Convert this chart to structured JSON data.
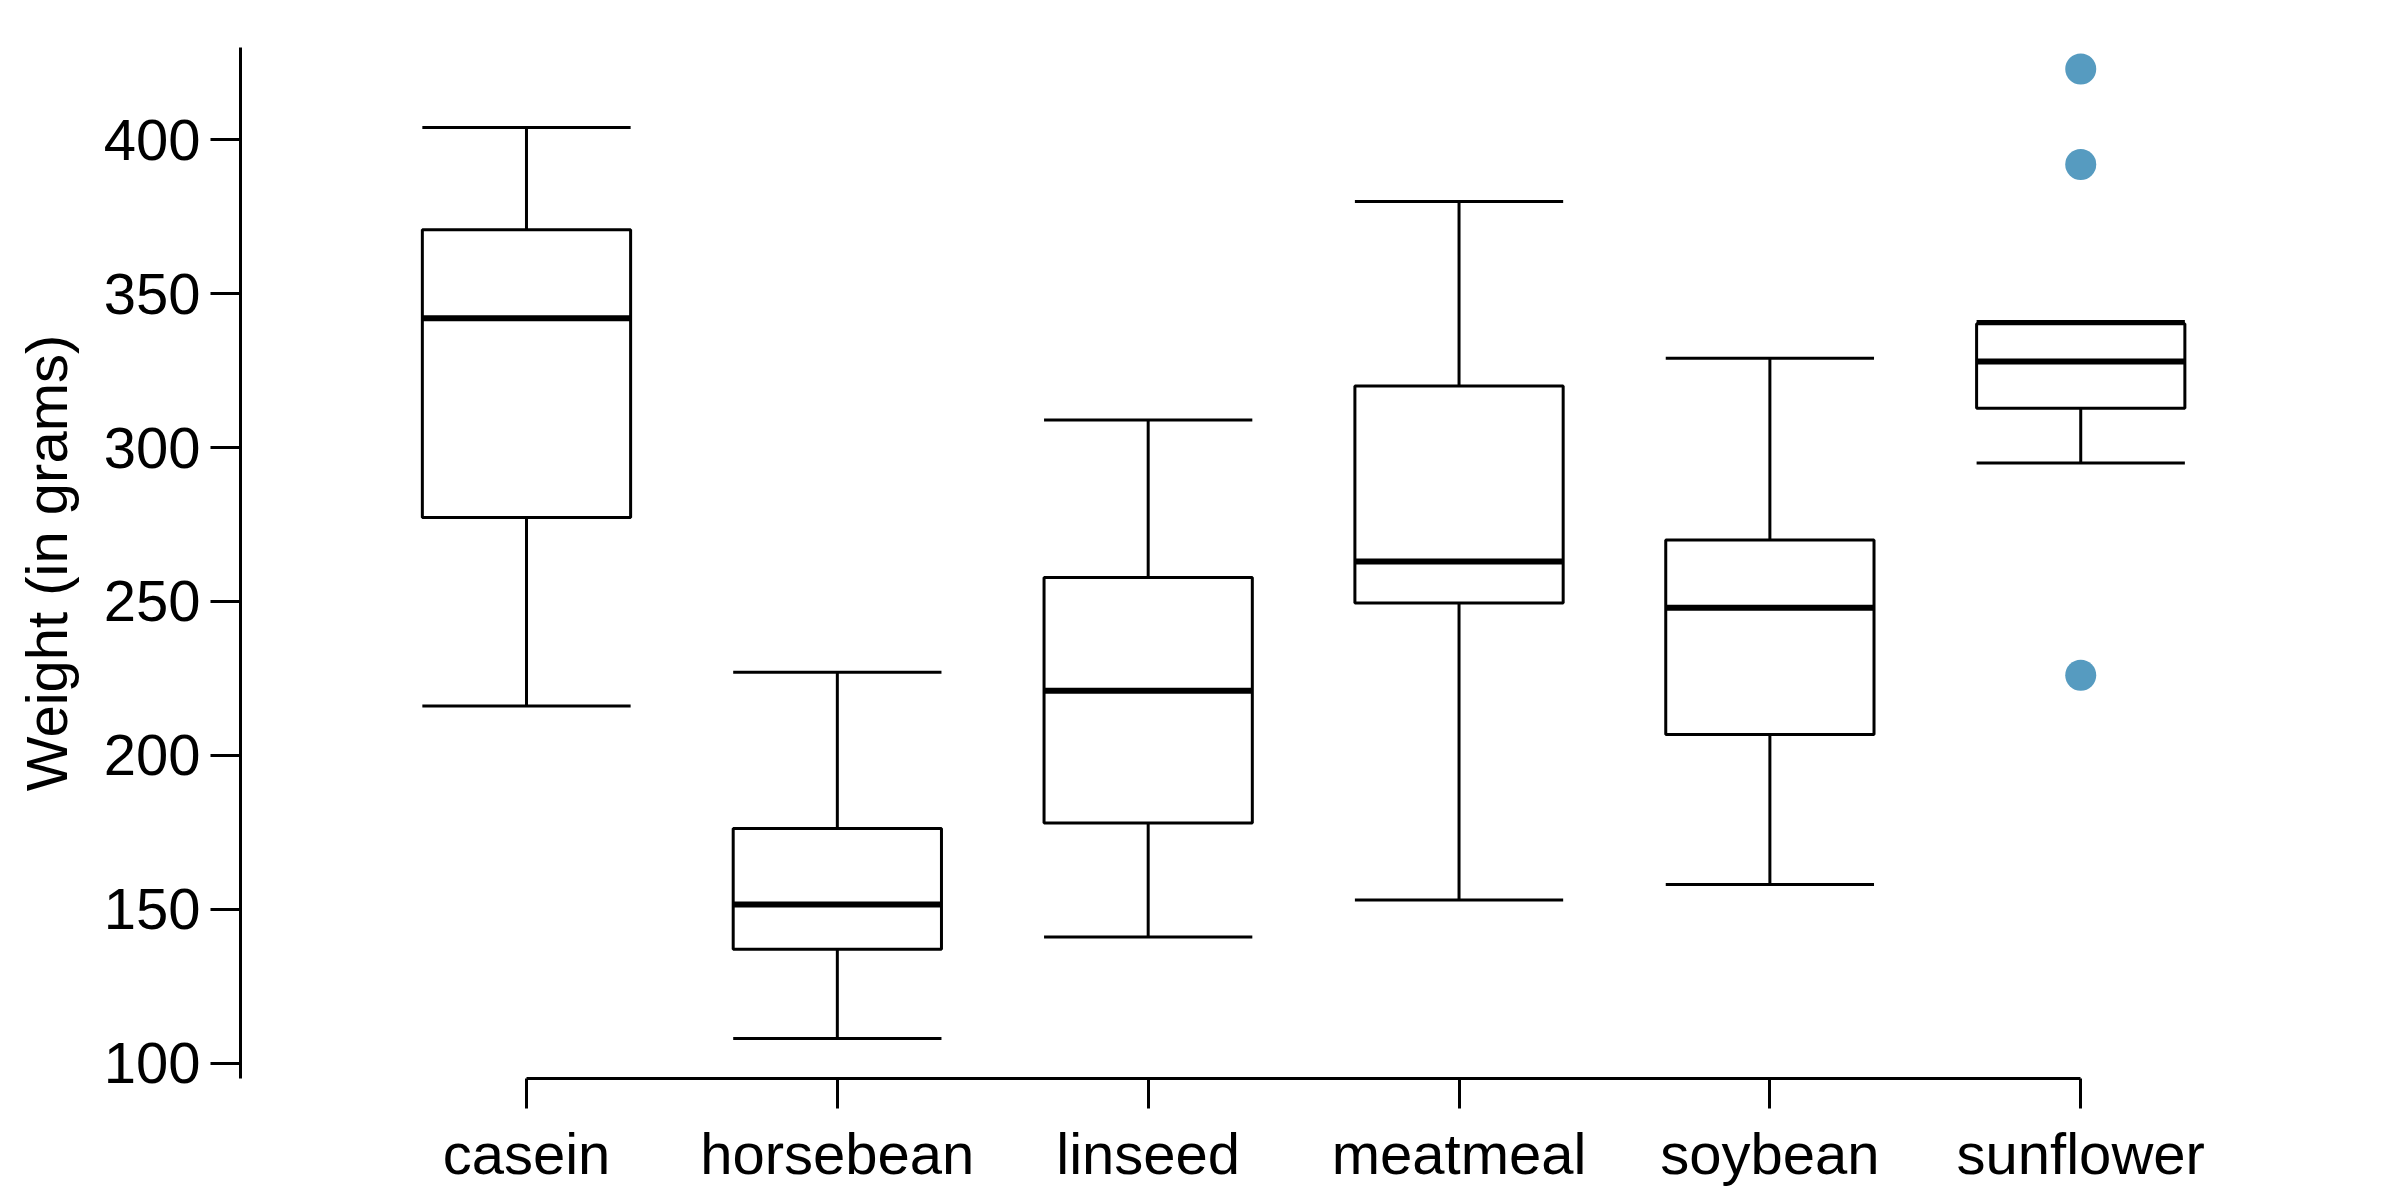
{
  "chart_data": {
    "type": "box",
    "ylabel": "Weight (in grams)",
    "categories": [
      "casein",
      "horsebean",
      "linseed",
      "meatmeal",
      "soybean",
      "sunflower"
    ],
    "boxes": [
      {
        "low": 216,
        "q1": 277.25,
        "median": 342,
        "q3": 370.75,
        "high": 404
      },
      {
        "low": 108,
        "q1": 137,
        "median": 151.5,
        "q3": 176.25,
        "high": 227
      },
      {
        "low": 141,
        "q1": 178,
        "median": 221,
        "q3": 257.75,
        "high": 309
      },
      {
        "low": 153,
        "q1": 249.5,
        "median": 263,
        "q3": 320,
        "high": 380
      },
      {
        "low": 158,
        "q1": 206.75,
        "median": 248,
        "q3": 270,
        "high": 329
      },
      {
        "low": 295,
        "q1": 312.75,
        "median": 328,
        "q3": 340.25,
        "high": 341,
        "outliers": [
          226,
          392,
          423
        ]
      }
    ],
    "ylim": [
      95,
      430
    ],
    "yticks": [
      100,
      150,
      200,
      250,
      300,
      350,
      400
    ],
    "marker": "circle",
    "grid": false
  }
}
